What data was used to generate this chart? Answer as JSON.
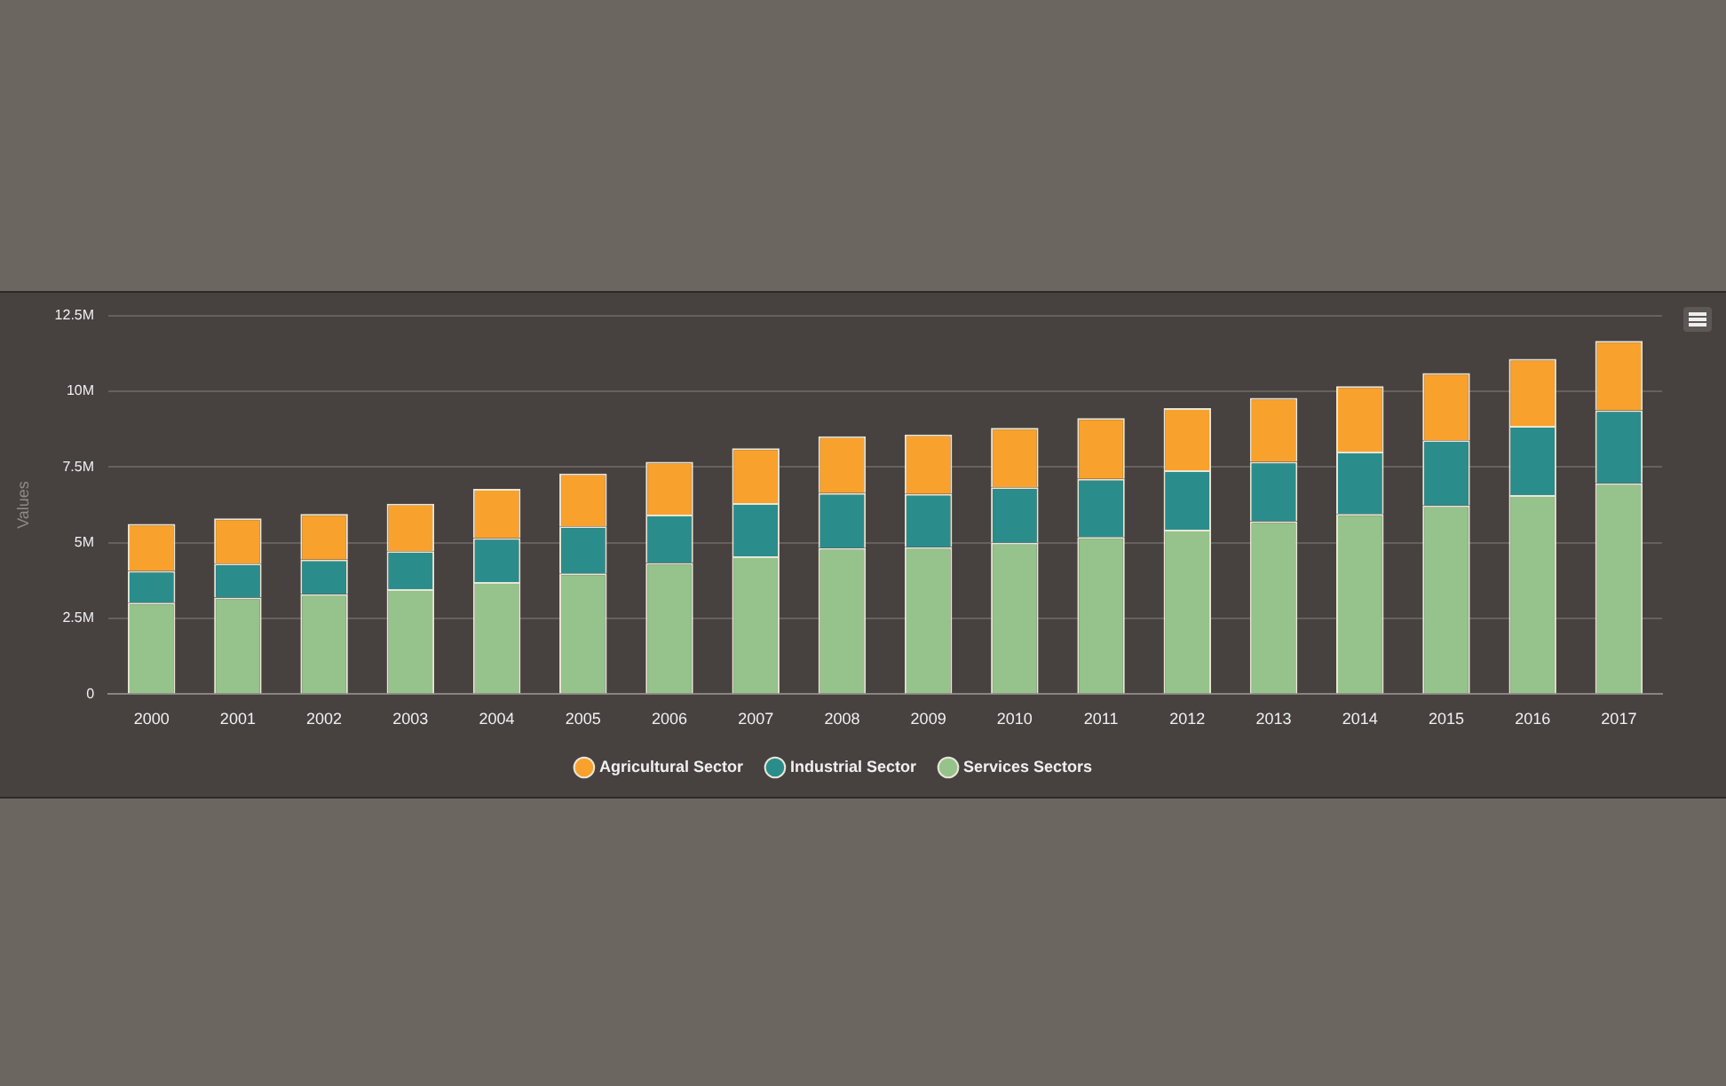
{
  "chart_data": {
    "type": "bar",
    "stacked": true,
    "ylabel": "Values",
    "categories": [
      "2000",
      "2001",
      "2002",
      "2003",
      "2004",
      "2005",
      "2006",
      "2007",
      "2008",
      "2009",
      "2010",
      "2011",
      "2012",
      "2013",
      "2014",
      "2015",
      "2016",
      "2017"
    ],
    "series": [
      {
        "name": "Services Sectors",
        "color": "#95c38b",
        "values": [
          3.02,
          3.19,
          3.3,
          3.47,
          3.7,
          3.99,
          4.33,
          4.55,
          4.82,
          4.85,
          5.0,
          5.19,
          5.43,
          5.71,
          5.95,
          6.23,
          6.57,
          6.96
        ]
      },
      {
        "name": "Industrial Sector",
        "color": "#2a8d8c",
        "values": [
          1.05,
          1.12,
          1.14,
          1.25,
          1.45,
          1.55,
          1.6,
          1.76,
          1.82,
          1.76,
          1.83,
          1.92,
          1.96,
          1.96,
          2.06,
          2.15,
          2.29,
          2.41
        ]
      },
      {
        "name": "Agricultural Sector",
        "color": "#f9a12d",
        "values": [
          1.55,
          1.49,
          1.51,
          1.57,
          1.63,
          1.74,
          1.74,
          1.81,
          1.87,
          1.96,
          1.96,
          2.0,
          2.05,
          2.11,
          2.16,
          2.22,
          2.21,
          2.29
        ]
      }
    ],
    "ylim": [
      0,
      12.5
    ],
    "yticks": [
      0,
      {
        "value": 2.5,
        "label": "2.5M"
      },
      {
        "value": 5,
        "label": "5M"
      },
      {
        "value": 7.5,
        "label": "7.5M"
      },
      {
        "value": 10,
        "label": "10M"
      },
      {
        "value": 12.5,
        "label": "12.5M"
      }
    ],
    "grid": "y",
    "legend": "bottom"
  }
}
